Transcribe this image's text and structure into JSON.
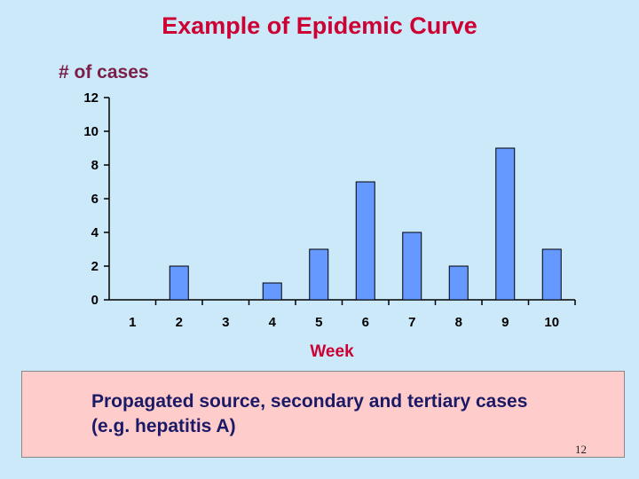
{
  "slide": {
    "title": "Example of Epidemic Curve",
    "note_line1": "Propagated source, secondary and tertiary cases",
    "note_line2": "(e.g. hepatitis A)",
    "page_number": "12"
  },
  "chart_data": {
    "type": "bar",
    "title": "Example of Epidemic Curve",
    "xlabel": "Week",
    "ylabel": "# of cases",
    "categories": [
      "1",
      "2",
      "3",
      "4",
      "5",
      "6",
      "7",
      "8",
      "9",
      "10"
    ],
    "values": [
      0,
      2,
      0,
      1,
      3,
      7,
      4,
      2,
      9,
      3
    ],
    "ylim": [
      0,
      12
    ],
    "yticks": [
      "0",
      "2",
      "4",
      "6",
      "8",
      "10",
      "12"
    ],
    "grid": false,
    "bar_color": "#6699ff"
  },
  "colors": {
    "background": "#cce9fa",
    "title": "#cc0033",
    "note_background": "#ffcccc"
  }
}
